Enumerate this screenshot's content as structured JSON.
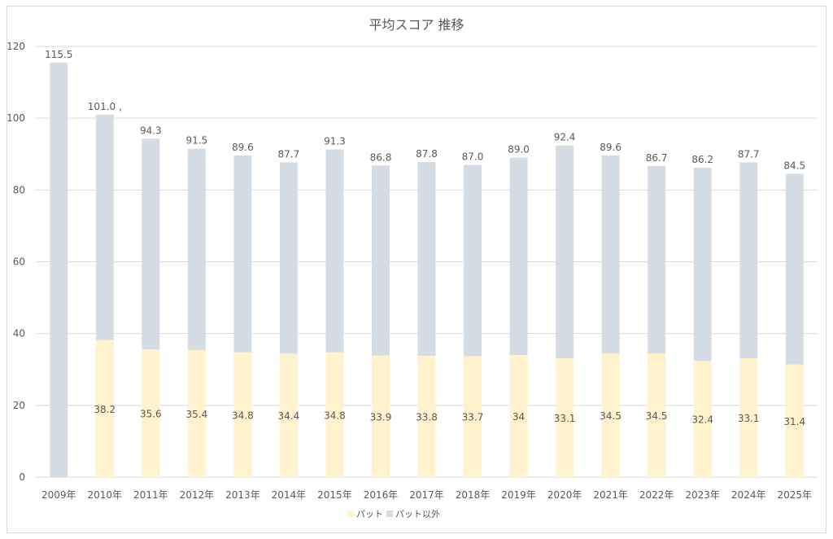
{
  "chart_data": {
    "type": "bar",
    "stacked": true,
    "title": "平均スコア 推移",
    "xlabel": "",
    "ylabel": "",
    "ylim": [
      0,
      120
    ],
    "yticks": [
      0,
      20,
      40,
      60,
      80,
      100,
      120
    ],
    "grid": true,
    "legend_position": "bottom",
    "categories": [
      "2009年",
      "2010年",
      "2011年",
      "2012年",
      "2013年",
      "2014年",
      "2015年",
      "2016年",
      "2017年",
      "2018年",
      "2019年",
      "2020年",
      "2021年",
      "2022年",
      "2023年",
      "2024年",
      "2025年"
    ],
    "totals": [
      115.5,
      101.0,
      94.3,
      91.5,
      89.6,
      87.7,
      91.3,
      86.8,
      87.8,
      87.0,
      89.0,
      92.4,
      89.6,
      86.7,
      86.2,
      87.7,
      84.5
    ],
    "total_labels": [
      "115.5",
      "101.0 ,",
      "94.3",
      "91.5",
      "89.6",
      "87.7",
      "91.3",
      "86.8",
      "87.8",
      "87.0",
      "89.0",
      "92.4",
      "89.6",
      "86.7",
      "86.2",
      "87.7",
      "84.5"
    ],
    "series": [
      {
        "name": "パット",
        "color": "#fff2cc",
        "values": [
          null,
          38.2,
          35.6,
          35.4,
          34.8,
          34.4,
          34.8,
          33.9,
          33.8,
          33.7,
          34,
          33.1,
          34.5,
          34.5,
          32.4,
          33.1,
          31.4
        ]
      },
      {
        "name": "パット以外",
        "color": "#d6dce4",
        "values": [
          115.5,
          62.8,
          58.7,
          56.1,
          54.8,
          53.3,
          56.5,
          52.9,
          54.0,
          53.3,
          55.0,
          59.3,
          55.1,
          52.2,
          53.8,
          54.6,
          53.1
        ]
      }
    ]
  }
}
